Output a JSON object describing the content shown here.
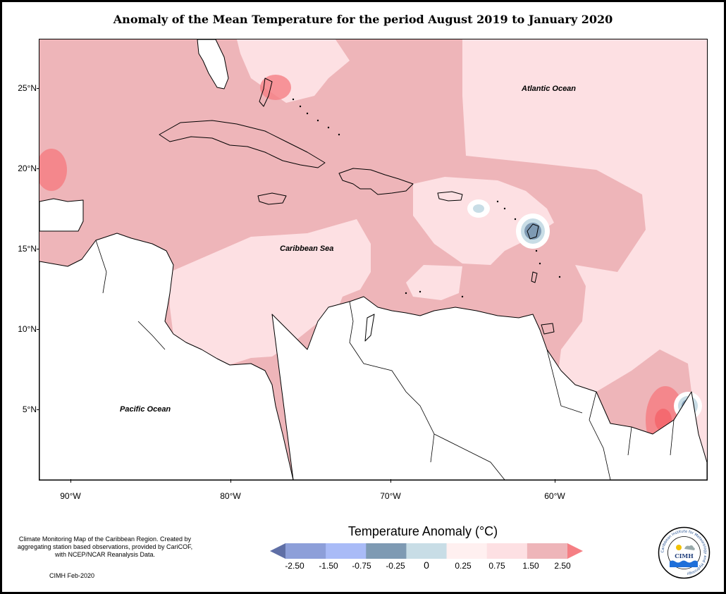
{
  "title": "Anomaly of the Mean Temperature for the period August 2019 to January 2020",
  "map": {
    "y_axis_labels": [
      "25°N",
      "20°N",
      "15°N",
      "10°N",
      "5°N"
    ],
    "x_axis_labels": [
      "90°W",
      "80°W",
      "70°W",
      "60°W"
    ],
    "regions": [
      "Atlantic Ocean",
      "Caribbean Sea",
      "Pacific Ocean"
    ]
  },
  "legend": {
    "title": "Temperature Anomaly (°C)",
    "labels": [
      "-2.50",
      "-1.50",
      "-0.75",
      "-0.25",
      "0",
      "0.25",
      "0.75",
      "1.50",
      "2.50"
    ],
    "colors": [
      "#5f6fa6",
      "#8d9fd9",
      "#a9bbf7",
      "#7e9ab3",
      "#c8dde6",
      "#fff0f0",
      "#fde0e3",
      "#eeb5b9",
      "#f57f84"
    ]
  },
  "credits": {
    "text": "Climate Monitoring Map of the Caribbean Region. Created by aggregating station based observations, provided by CariCOF, with NCEP/NCAR Reanalysis Data.",
    "date": "CIMH Feb-2020"
  },
  "logo": {
    "text": "CIMH",
    "ring_text": "Caribbean Institute for Meteorology and Hydrology"
  }
}
